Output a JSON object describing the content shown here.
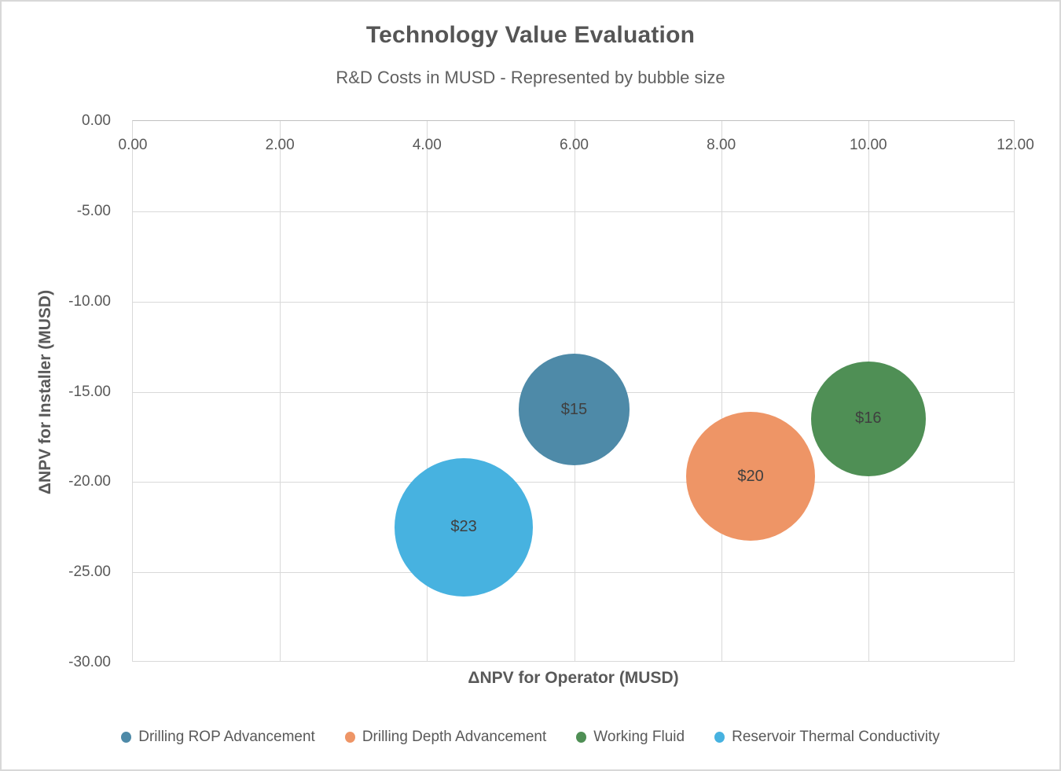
{
  "chart_data": {
    "type": "scatter",
    "variant": "bubble",
    "title": "Technology Value Evaluation",
    "subtitle": "R&D Costs in MUSD - Represented by bubble size",
    "xlabel": "ΔNPV for Operator (MUSD)",
    "ylabel": "ΔNPV for Installer (MUSD)",
    "xlim": [
      0,
      12
    ],
    "ylim": [
      -30,
      0
    ],
    "grid": true,
    "x_ticks": {
      "values": [
        0,
        2,
        4,
        6,
        8,
        10,
        12
      ],
      "labels": [
        "0.00",
        "2.00",
        "4.00",
        "6.00",
        "8.00",
        "10.00",
        "12.00"
      ]
    },
    "y_ticks": {
      "values": [
        0,
        -5,
        -10,
        -15,
        -20,
        -25,
        -30
      ],
      "labels": [
        "0.00",
        "-5.00",
        "-10.00",
        "-15.00",
        "-20.00",
        "-25.00",
        "-30.00"
      ]
    },
    "size_meaning": "R&D cost in MUSD, bubble area proportional to value",
    "series": [
      {
        "name": "Drilling ROP Advancement",
        "x": 6.0,
        "y": -16.0,
        "size_musd": 15,
        "data_label": "$15",
        "color": "#4E8AA8"
      },
      {
        "name": "Drilling Depth Advancement",
        "x": 8.4,
        "y": -19.7,
        "size_musd": 20,
        "data_label": "$20",
        "color": "#EE9566"
      },
      {
        "name": "Working Fluid",
        "x": 10.0,
        "y": -16.5,
        "size_musd": 16,
        "data_label": "$16",
        "color": "#4F8F55"
      },
      {
        "name": "Reservoir Thermal Conductivity",
        "x": 4.5,
        "y": -22.5,
        "size_musd": 23,
        "data_label": "$23",
        "color": "#47B2E0"
      }
    ],
    "legend": {
      "position": "bottom",
      "entries": [
        "Drilling ROP Advancement",
        "Drilling Depth Advancement",
        "Working Fluid",
        "Reservoir Thermal Conductivity"
      ]
    }
  },
  "colors": {
    "title_text": "#555555",
    "subtitle_text": "#606060",
    "axis_text": "#595959",
    "bubble_label_text": "#3F3F3F",
    "gridline": "#D9D9D9",
    "axis_line": "#BFBFBF",
    "canvas_border": "#D8D8D8",
    "background": "#FFFFFF"
  }
}
